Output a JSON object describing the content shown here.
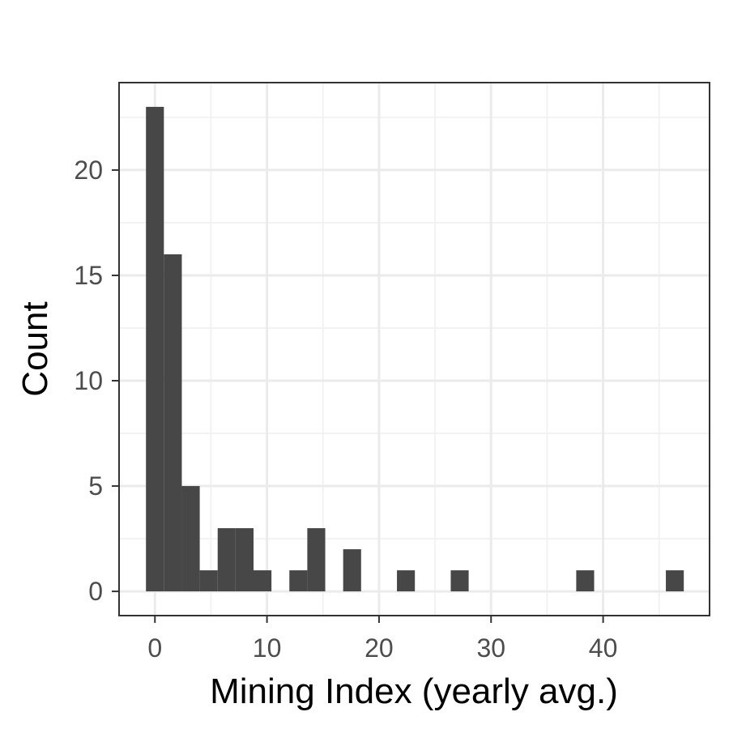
{
  "chart_data": {
    "type": "bar",
    "subtype": "histogram",
    "title": "",
    "xlabel": "Mining Index (yearly avg.)",
    "ylabel": "Count",
    "xlim": [
      -3.2,
      49.5
    ],
    "ylim": [
      -1.15,
      24.15
    ],
    "x_ticks": [
      0,
      10,
      20,
      30,
      40
    ],
    "y_ticks": [
      0,
      5,
      10,
      15,
      20
    ],
    "x_minor_grid": [
      5,
      15,
      25,
      35,
      45
    ],
    "y_minor_grid": [
      2.5,
      7.5,
      12.5,
      17.5,
      22.5
    ],
    "grid": true,
    "bin_width": 1.6,
    "bins": [
      {
        "x": 0.0,
        "count": 23
      },
      {
        "x": 1.6,
        "count": 16
      },
      {
        "x": 3.2,
        "count": 5
      },
      {
        "x": 4.8,
        "count": 1
      },
      {
        "x": 6.4,
        "count": 3
      },
      {
        "x": 8.0,
        "count": 3
      },
      {
        "x": 9.6,
        "count": 1
      },
      {
        "x": 12.8,
        "count": 1
      },
      {
        "x": 14.4,
        "count": 3
      },
      {
        "x": 17.6,
        "count": 2
      },
      {
        "x": 22.4,
        "count": 1
      },
      {
        "x": 27.2,
        "count": 1
      },
      {
        "x": 38.4,
        "count": 1
      },
      {
        "x": 46.4,
        "count": 1
      }
    ],
    "colors": {
      "bar": "#474747",
      "panel_border": "#333333",
      "major_grid": "#ebebeb",
      "minor_grid": "#f2f2f2",
      "tick_label": "#4d4d4d",
      "axis_title": "#000000"
    }
  }
}
